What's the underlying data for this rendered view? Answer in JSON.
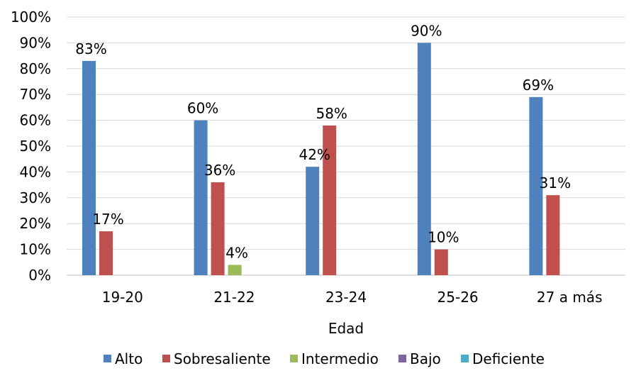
{
  "chart_data": {
    "type": "bar",
    "title": "",
    "xlabel": "Edad",
    "ylabel": "",
    "ylim": [
      0,
      100
    ],
    "yticks": [
      "0%",
      "10%",
      "20%",
      "30%",
      "40%",
      "50%",
      "60%",
      "70%",
      "80%",
      "90%",
      "100%"
    ],
    "categories": [
      "19-20",
      "21-22",
      "23-24",
      "25-26",
      "27 a más"
    ],
    "series": [
      {
        "name": "Alto",
        "color": "#4F81BD",
        "values": [
          83,
          60,
          42,
          90,
          69
        ],
        "labels": [
          "83%",
          "60%",
          "42%",
          "90%",
          "69%"
        ]
      },
      {
        "name": "Sobresaliente",
        "color": "#C0504D",
        "values": [
          17,
          36,
          58,
          10,
          31
        ],
        "labels": [
          "17%",
          "36%",
          "58%",
          "10%",
          "31%"
        ]
      },
      {
        "name": "Intermedio",
        "color": "#9BBB59",
        "values": [
          0,
          4,
          0,
          0,
          0
        ],
        "labels": [
          "",
          "4%",
          "",
          "",
          ""
        ]
      },
      {
        "name": "Bajo",
        "color": "#8064A2",
        "values": [
          0,
          0,
          0,
          0,
          0
        ],
        "labels": [
          "",
          "",
          "",
          "",
          ""
        ]
      },
      {
        "name": "Deficiente",
        "color": "#4BACC6",
        "values": [
          0,
          0,
          0,
          0,
          0
        ],
        "labels": [
          "",
          "",
          "",
          "",
          ""
        ]
      }
    ],
    "grid": true,
    "legend_position": "bottom"
  }
}
